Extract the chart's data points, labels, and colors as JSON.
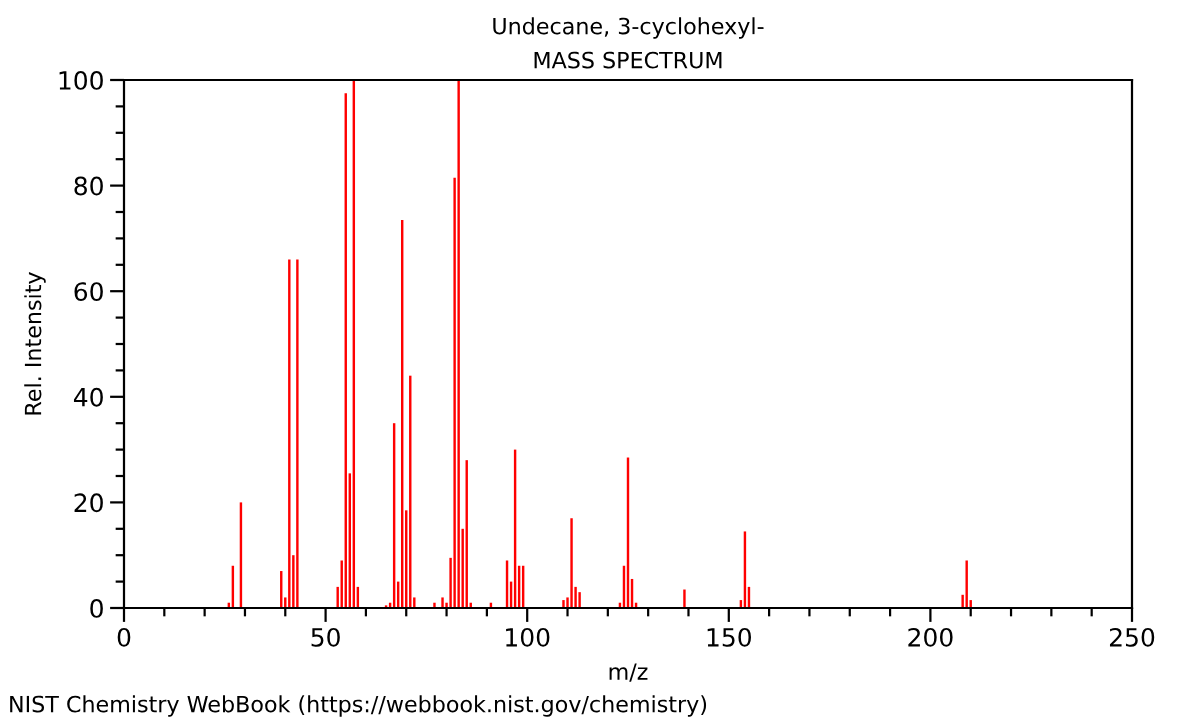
{
  "chart_data": {
    "type": "bar",
    "title": "Undecane, 3-cyclohexyl-",
    "subtitle": "MASS SPECTRUM",
    "xlabel": "m/z",
    "ylabel": "Rel. Intensity",
    "x": [
      26,
      27,
      29,
      39,
      40,
      41,
      42,
      43,
      53,
      54,
      55,
      56,
      57,
      58,
      65,
      66,
      67,
      68,
      69,
      70,
      71,
      72,
      77,
      79,
      80,
      81,
      82,
      83,
      84,
      85,
      86,
      91,
      95,
      96,
      97,
      98,
      99,
      109,
      110,
      111,
      112,
      113,
      123,
      124,
      125,
      126,
      127,
      139,
      153,
      154,
      155,
      208,
      209,
      210
    ],
    "values": [
      1,
      8,
      20,
      7,
      2,
      66,
      10,
      66,
      4,
      9,
      97.5,
      25.5,
      100,
      4,
      0.5,
      1,
      35,
      5,
      73.5,
      18.5,
      44,
      2,
      1,
      2,
      1,
      9.5,
      81.5,
      100,
      15,
      28,
      1,
      1,
      9,
      5,
      30,
      8,
      8,
      1.5,
      2,
      17,
      4,
      3,
      1,
      8,
      28.5,
      5.5,
      1,
      3.5,
      1.5,
      14.5,
      4,
      2.5,
      9,
      1.5
    ],
    "color": "#ff0000",
    "xlim": [
      0,
      250
    ],
    "ylim": [
      0,
      100
    ],
    "xticks": [
      0,
      {
        "value": 10,
        "label": null
      },
      {
        "value": 20,
        "label": null
      },
      {
        "value": 30,
        "label": null
      },
      {
        "value": 40,
        "label": null
      },
      50,
      {
        "value": 60,
        "label": null
      },
      {
        "value": 70,
        "label": null
      },
      {
        "value": 80,
        "label": null
      },
      {
        "value": 90,
        "label": null
      },
      100,
      {
        "value": 110,
        "label": null
      },
      {
        "value": 120,
        "label": null
      },
      {
        "value": 130,
        "label": null
      },
      {
        "value": 140,
        "label": null
      },
      150,
      {
        "value": 160,
        "label": null
      },
      {
        "value": 170,
        "label": null
      },
      {
        "value": 180,
        "label": null
      },
      {
        "value": 190,
        "label": null
      },
      200,
      {
        "value": 210,
        "label": null
      },
      {
        "value": 220,
        "label": null
      },
      {
        "value": 230,
        "label": null
      },
      {
        "value": 240,
        "label": null
      },
      250
    ],
    "yticks": [
      0,
      {
        "value": 5,
        "label": null
      },
      {
        "value": 10,
        "label": null
      },
      {
        "value": 15,
        "label": null
      },
      20,
      {
        "value": 25,
        "label": null
      },
      {
        "value": 30,
        "label": null
      },
      {
        "value": 35,
        "label": null
      },
      40,
      {
        "value": 45,
        "label": null
      },
      {
        "value": 50,
        "label": null
      },
      {
        "value": 55,
        "label": null
      },
      60,
      {
        "value": 65,
        "label": null
      },
      {
        "value": 70,
        "label": null
      },
      {
        "value": 75,
        "label": null
      },
      80,
      {
        "value": 85,
        "label": null
      },
      {
        "value": 90,
        "label": null
      },
      {
        "value": 95,
        "label": null
      },
      100
    ],
    "grid": false,
    "legend": false,
    "annotations": [
      "NIST Chemistry WebBook (https://webbook.nist.gov/chemistry)"
    ]
  }
}
